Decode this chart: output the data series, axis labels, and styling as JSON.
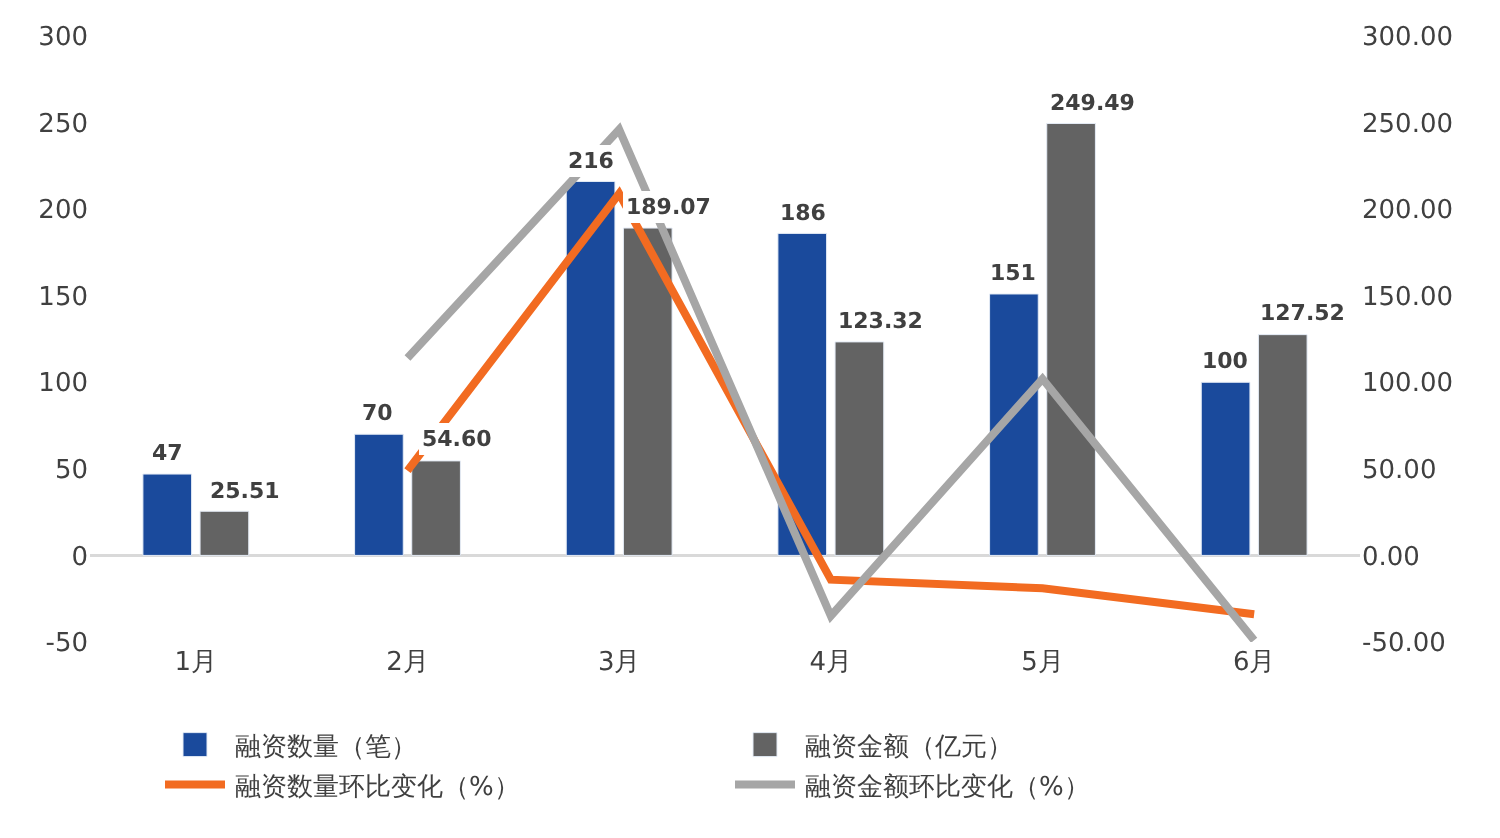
{
  "chart_data": {
    "type": "bar",
    "categories": [
      "1月",
      "2月",
      "3月",
      "4月",
      "5月",
      "6月"
    ],
    "series": [
      {
        "name": "融资数量（笔）",
        "color": "#1a4a9c",
        "values": [
          47,
          70,
          216,
          186,
          151,
          100
        ],
        "value_labels": [
          "47",
          "70",
          "216",
          "186",
          "151",
          "100"
        ]
      },
      {
        "name": "融资金额（亿元）",
        "color": "#636363",
        "values": [
          25.51,
          54.6,
          189.07,
          123.32,
          249.49,
          127.52
        ],
        "value_labels": [
          "25.51",
          "54.60",
          "189.07",
          "123.32",
          "249.49",
          "127.52"
        ]
      },
      {
        "name": "融资数量环比变化（%）",
        "type": "line",
        "axis": "y2",
        "color": "#f26b21",
        "values": [
          null,
          49,
          209,
          -14,
          -19,
          -34
        ]
      },
      {
        "name": "融资金额环比变化（%）",
        "type": "line",
        "axis": "y2",
        "color": "#a6a6a6",
        "values": [
          null,
          114,
          246,
          -35,
          102,
          -49
        ]
      }
    ],
    "ylim": [
      -50,
      300
    ],
    "yticks": [
      -50,
      0,
      50,
      100,
      150,
      200,
      250,
      300
    ],
    "y2lim": [
      -50,
      300
    ],
    "y2ticks": [
      {
        "value": -50,
        "label": "-50.00"
      },
      {
        "value": 0,
        "label": "0.00"
      },
      {
        "value": 50,
        "label": "50.00"
      },
      {
        "value": 100,
        "label": "100.00"
      },
      {
        "value": 150,
        "label": "150.00"
      },
      {
        "value": 200,
        "label": "200.00"
      },
      {
        "value": 250,
        "label": "250.00"
      },
      {
        "value": 300,
        "label": "300.00"
      }
    ],
    "ref_lines": [
      {
        "axis": "y",
        "value": 0,
        "color": "#d9d9d9"
      }
    ],
    "grid": false,
    "legend": "bottom",
    "marker": "none",
    "line_style": "solid"
  }
}
